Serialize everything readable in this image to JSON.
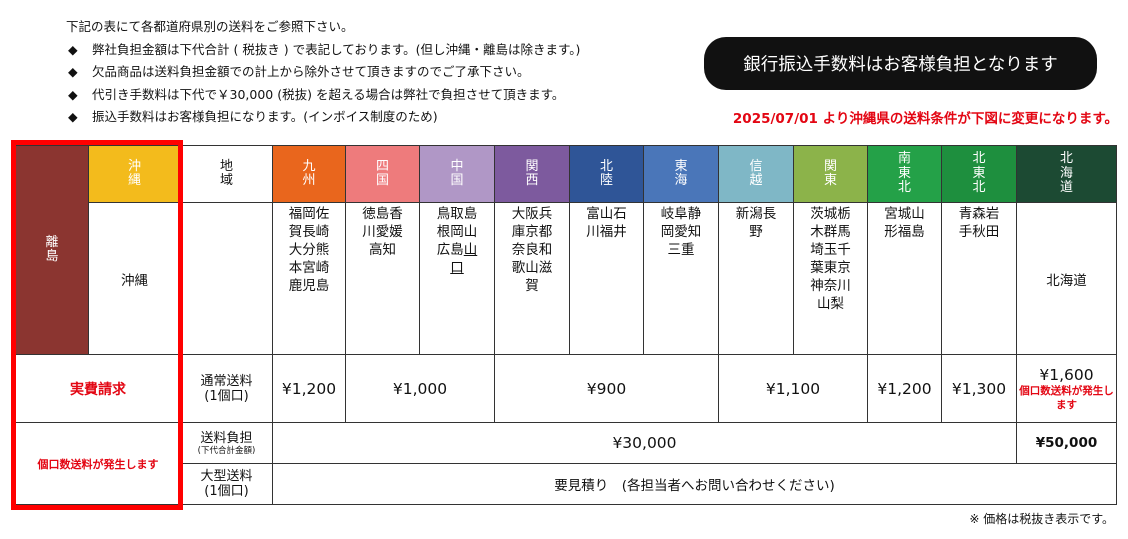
{
  "notes": {
    "intro": "下記の表にて各都道府県別の送料をご参照下さい。",
    "bullets": [
      "弊社負担金額は下代合計 ( 税抜き ) で表記しております。(但し沖縄・離島は除きます。)",
      "欠品商品は送料負担金額での計上から除外させて頂きますのでご了承下さい。",
      "代引き手数料は下代で￥30,000 (税抜) を超える場合は弊社で負担させて頂きます。",
      "振込手数料はお客様負担になります。(インボイス制度のため)"
    ],
    "bullet_symbol": "◆"
  },
  "banner": "銀行振込手数料はお客様負担となります",
  "change_notice": "2025/07/01 より沖縄県の送料条件が下図に変更になります。",
  "table": {
    "ritou_label": "離島",
    "okinawa_header": "沖縄",
    "okinawa_pref": "沖縄",
    "region_label": "地域",
    "regions": [
      {
        "name": "九州",
        "color": "#e9661d",
        "prefs": "福岡佐賀長崎大分熊本宮崎鹿児島"
      },
      {
        "name": "四国",
        "color": "#ee7b7c",
        "prefs": "徳島香川愛媛高知"
      },
      {
        "name": "中国",
        "color": "#b097c6",
        "prefs": "鳥取島根岡山広島",
        "prefs_link": "山口"
      },
      {
        "name": "関西",
        "color": "#7d5a9e",
        "prefs": "大阪兵庫京都奈良和歌山滋賀"
      },
      {
        "name": "北陸",
        "color": "#2f5597",
        "prefs": "富山石川福井"
      },
      {
        "name": "東海",
        "color": "#4a76b9",
        "prefs": "岐阜静岡愛知三重"
      },
      {
        "name": "信越",
        "color": "#7fb7c6",
        "prefs": "新潟長野"
      },
      {
        "name": "関東",
        "color": "#8cb34a",
        "prefs": "茨城栃木群馬埼玉千葉東京神奈川山梨"
      },
      {
        "name": "南東北",
        "color": "#24a148",
        "prefs": "宮城山形福島"
      },
      {
        "name": "北東北",
        "color": "#1e8f3e",
        "prefs": "青森岩手秋田"
      },
      {
        "name": "北海道",
        "color": "#1c4a33",
        "prefs": "北海道"
      }
    ],
    "okinawa_color": "#f3bb1c",
    "ritou_color": "#8b3530",
    "rows": {
      "normal_label": "通常送料",
      "normal_label2": "(1個口)",
      "burden_label": "送料負担",
      "burden_small": "(下代合計金額)",
      "large_label": "大型送料",
      "large_label2": "(1個口)"
    },
    "actual_cost": "実費請求",
    "multi_note": "個口数送料が発生します",
    "prices": {
      "kyushu": "¥1,200",
      "shikoku_chugoku": "¥1,000",
      "kansai_hokuriku_tokai": "¥900",
      "shinetsu_kanto": "¥1,100",
      "minami_tohoku": "¥1,200",
      "kita_tohoku": "¥1,300",
      "hokkaido": "¥1,600",
      "hokkaido_note": "個口数送料が発生します"
    },
    "burden_main": "¥30,000",
    "burden_hokkaido": "¥50,000",
    "large_text": "要見積り　(各担当者へお問い合わせください)"
  },
  "footnote": "※ 価格は税抜き表示です。"
}
